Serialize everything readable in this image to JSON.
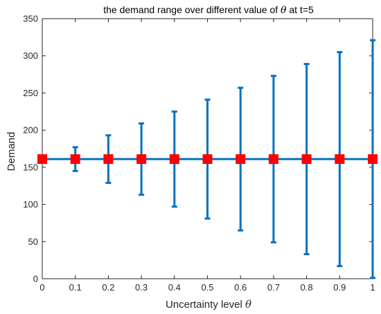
{
  "chart_data": {
    "type": "errorbar",
    "title_prefix": "the demand range over different value of ",
    "title_symbol": "θ",
    "title_suffix": " at t=5",
    "xlabel_prefix": "Uncertainty level ",
    "xlabel_symbol": "θ",
    "ylabel": "Demand",
    "xlim": [
      0,
      1
    ],
    "ylim": [
      0,
      350
    ],
    "xticks": [
      "0",
      "0.1",
      "0.2",
      "0.3",
      "0.4",
      "0.5",
      "0.6",
      "0.7",
      "0.8",
      "0.9",
      "1"
    ],
    "yticks": [
      "0",
      "50",
      "100",
      "150",
      "200",
      "250",
      "300",
      "350"
    ],
    "grid": false,
    "series": [
      {
        "x": [
          0,
          0.1,
          0.2,
          0.3,
          0.4,
          0.5,
          0.6,
          0.7,
          0.8,
          0.9,
          1.0
        ],
        "y": [
          161,
          161,
          161,
          161,
          161,
          161,
          161,
          161,
          161,
          161,
          161
        ],
        "lower": [
          161,
          145,
          129,
          113,
          97,
          81,
          65,
          49,
          33,
          17,
          1
        ],
        "upper": [
          161,
          177,
          193,
          209,
          225,
          241,
          257,
          273,
          289,
          305,
          321
        ],
        "line_color": "#0072BD",
        "marker": "square",
        "marker_color": "#FF0000"
      }
    ]
  }
}
